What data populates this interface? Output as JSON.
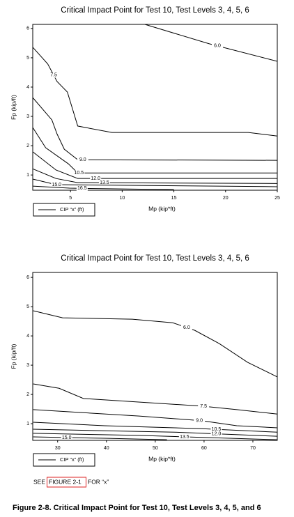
{
  "chart_data": [
    {
      "type": "line",
      "title": "Critical Impact Point for Test 10, Test Levels 3, 4, 5, 6",
      "x_label": "Mp (kip*ft)",
      "y_label": "Fp (kip/ft)",
      "legend": "CIP “x” (ft)",
      "xlim": [
        1.35,
        25
      ],
      "ylim": [
        0.48,
        6.14
      ],
      "xticks": [
        5,
        10,
        15,
        20,
        25
      ],
      "yticks": [
        1,
        2,
        3,
        4,
        5,
        6
      ],
      "series": [
        {
          "name": "6.0",
          "color": "#000000",
          "x": [
            12.2,
            18.4,
            25
          ],
          "values": [
            6.14,
            5.48,
            4.88
          ]
        },
        {
          "name": "7.5",
          "color": "#000000",
          "x": [
            1.35,
            2.8,
            3.7,
            4.7,
            5.7,
            9,
            22.2,
            25
          ],
          "values": [
            5.36,
            4.79,
            4.19,
            3.83,
            2.67,
            2.45,
            2.45,
            2.33
          ]
        },
        {
          "name": "9.0",
          "color": "#000000",
          "x": [
            1.35,
            3.2,
            3.7,
            4.4,
            5.7,
            25
          ],
          "values": [
            3.64,
            2.88,
            2.4,
            1.88,
            1.52,
            1.5
          ]
        },
        {
          "name": "10.5",
          "color": "#000000",
          "x": [
            1.35,
            2.6,
            4.8,
            5.7,
            25
          ],
          "values": [
            2.62,
            1.93,
            1.38,
            1.07,
            1.07
          ]
        },
        {
          "name": "12.0",
          "color": "#000000",
          "x": [
            1.35,
            3.6,
            5.7,
            25
          ],
          "values": [
            1.79,
            1.17,
            0.88,
            0.88
          ]
        },
        {
          "name": "13.5",
          "color": "#000000",
          "x": [
            1.35,
            3.6,
            5.7,
            25
          ],
          "values": [
            1.21,
            0.88,
            0.74,
            0.71
          ]
        },
        {
          "name": "15.0",
          "color": "#000000",
          "x": [
            1.35,
            3.6,
            25
          ],
          "values": [
            0.86,
            0.67,
            0.6
          ]
        },
        {
          "name": "16.5",
          "color": "#000000",
          "x": [
            1.35,
            4.9,
            15
          ],
          "values": [
            0.62,
            0.55,
            0.5
          ]
        }
      ]
    },
    {
      "type": "line",
      "title": "Critical Impact Point for Test 10, Test Levels 3, 4, 5, 6",
      "x_label": "Mp (kip*ft)",
      "y_label": "Fp (kip/ft)",
      "legend": "CIP “x” (ft)",
      "xlim": [
        24.9,
        75
      ],
      "ylim": [
        0.43,
        6.17
      ],
      "xticks": [
        30,
        40,
        50,
        60,
        70
      ],
      "yticks": [
        1,
        2,
        3,
        4,
        5,
        6
      ],
      "series": [
        {
          "name": "6.0",
          "color": "#000000",
          "x": [
            25,
            31,
            45.3,
            53.6,
            58.1,
            63.1,
            68.9,
            75
          ],
          "values": [
            4.86,
            4.62,
            4.57,
            4.45,
            4.19,
            3.74,
            3.1,
            2.6
          ]
        },
        {
          "name": "7.5",
          "color": "#000000",
          "x": [
            25,
            30.3,
            35.3,
            59.6,
            66.7,
            75
          ],
          "values": [
            2.36,
            2.21,
            1.86,
            1.6,
            1.48,
            1.33
          ]
        },
        {
          "name": "9.0",
          "color": "#000000",
          "x": [
            25,
            46.7,
            59.6,
            66.7,
            75
          ],
          "values": [
            1.48,
            1.26,
            1.1,
            0.93,
            0.86
          ]
        },
        {
          "name": "10.5",
          "color": "#000000",
          "x": [
            25,
            39.6,
            59.6,
            75
          ],
          "values": [
            1.05,
            0.93,
            0.83,
            0.71
          ]
        },
        {
          "name": "12.0",
          "color": "#000000",
          "x": [
            25,
            53.9,
            75
          ],
          "values": [
            0.81,
            0.71,
            0.57
          ]
        },
        {
          "name": "13.5",
          "color": "#000000",
          "x": [
            25,
            46.7,
            75
          ],
          "values": [
            0.67,
            0.6,
            0.45
          ]
        },
        {
          "name": "15.0",
          "color": "#000000",
          "x": [
            25,
            39.6,
            52.4
          ],
          "values": [
            0.55,
            0.5,
            0.45
          ]
        }
      ]
    }
  ],
  "note": {
    "before": "SEE",
    "link": "FIGURE 2-1",
    "after": "FOR “x”"
  },
  "caption": "Figure 2-8. Critical Impact Point for Test 10, Test Levels 3, 4, 5, and 6"
}
